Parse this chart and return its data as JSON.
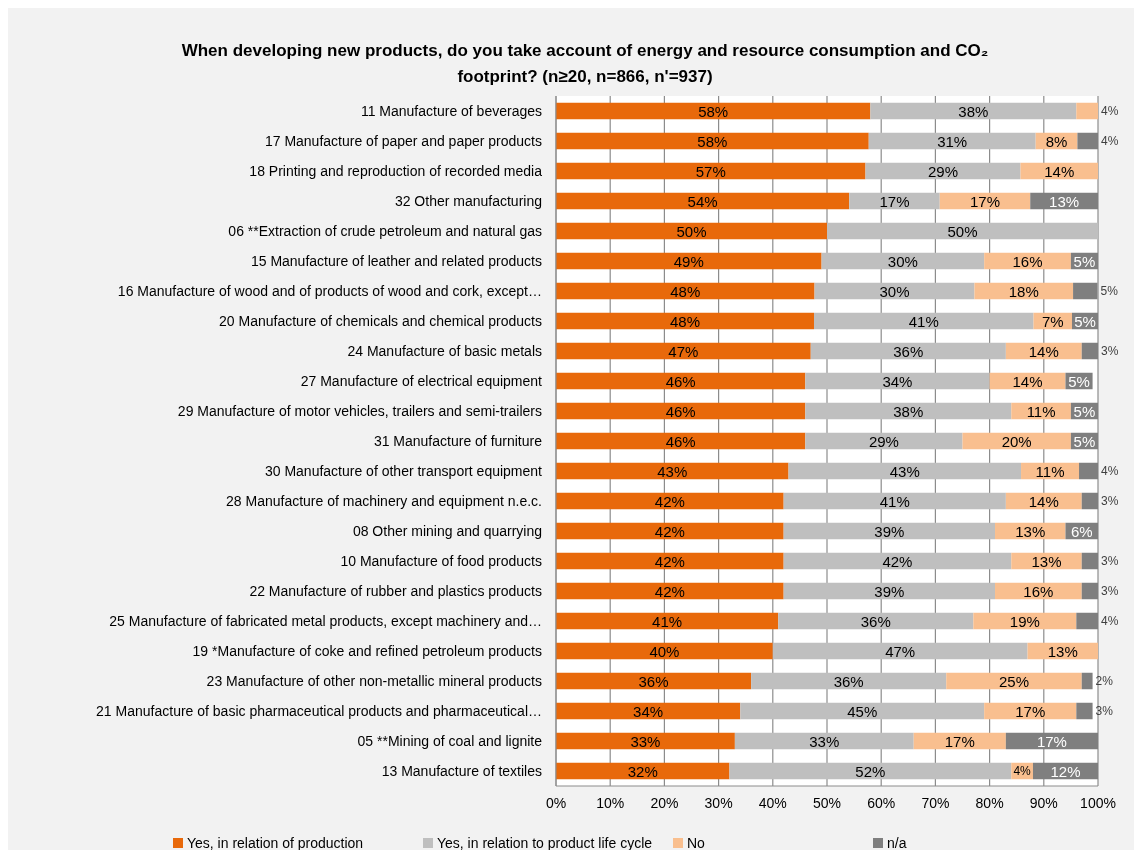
{
  "chart_data": {
    "type": "bar",
    "orientation": "horizontal",
    "stacked": true,
    "title": "When developing new products, do you take account of energy and resource consumption and CO₂ footprint? (n≥20, n=866, n'=937)",
    "categories": [
      "11 Manufacture of beverages",
      "17 Manufacture of paper and paper products",
      "18 Printing and reproduction of recorded media",
      "32 Other manufacturing",
      "06 **Extraction of crude petroleum and natural gas",
      "15 Manufacture of leather and related products",
      "16 Manufacture of wood and of products of wood and cork, except…",
      "20 Manufacture of chemicals and chemical products",
      "24 Manufacture of basic metals",
      "27 Manufacture of electrical equipment",
      "29 Manufacture of motor vehicles, trailers and semi-trailers",
      "31 Manufacture of furniture",
      "30 Manufacture of other transport equipment",
      "28 Manufacture of machinery and equipment n.e.c.",
      "08 Other mining and quarrying",
      "10 Manufacture of food products",
      "22 Manufacture of rubber and plastics products",
      "25 Manufacture of fabricated metal products, except machinery and…",
      "19 *Manufacture of coke and refined petroleum products",
      "23 Manufacture of other non-metallic mineral products",
      "21 Manufacture of basic pharmaceutical products and pharmaceutical…",
      "05 **Mining of coal and lignite",
      "13 Manufacture of textiles"
    ],
    "series": [
      {
        "name": "Yes, in relation of production",
        "color": "#e8690b",
        "values": [
          58,
          57.7,
          57.1,
          54.1,
          50,
          49,
          47.7,
          47.6,
          47,
          46,
          46,
          46,
          42.9,
          42,
          42,
          42,
          42,
          41,
          40,
          36,
          34,
          33,
          32
        ],
        "value_labels": [
          "58%",
          "58%",
          "57%",
          "54%",
          "50%",
          "49%",
          "48%",
          "48%",
          "47%",
          "46%",
          "46%",
          "46%",
          "43%",
          "42%",
          "42%",
          "42%",
          "42%",
          "41%",
          "40%",
          "36%",
          "34%",
          "33%",
          "32%"
        ]
      },
      {
        "name": "Yes, in relation to product life cycle",
        "color": "#bfbfbf",
        "values": [
          38,
          30.8,
          28.6,
          16.7,
          50,
          30,
          29.5,
          40.5,
          36,
          34,
          38,
          29,
          42.9,
          41,
          39,
          42,
          39,
          36,
          47,
          36,
          45,
          33,
          52
        ],
        "value_labels": [
          "38%",
          "31%",
          "29%",
          "17%",
          "50%",
          "30%",
          "30%",
          "41%",
          "36%",
          "34%",
          "38%",
          "29%",
          "43%",
          "41%",
          "39%",
          "42%",
          "39%",
          "36%",
          "47%",
          "36%",
          "45%",
          "33%",
          "52%"
        ]
      },
      {
        "name": "No",
        "color": "#f9bf8f",
        "values": [
          4,
          7.7,
          14.3,
          16.7,
          null,
          16,
          18.2,
          7.1,
          14,
          14,
          11,
          20,
          10.7,
          14,
          13,
          13,
          16,
          19,
          13,
          25,
          17,
          17,
          4
        ],
        "value_labels": [
          "4%",
          "8%",
          "14%",
          "17%",
          null,
          "16%",
          "18%",
          "7%",
          "14%",
          "14%",
          "11%",
          "20%",
          "11%",
          "14%",
          "13%",
          "13%",
          "16%",
          "19%",
          "13%",
          "25%",
          "17%",
          "17%",
          "4%"
        ]
      },
      {
        "name": "n/a",
        "color": "#7f7f7f",
        "values": [
          null,
          3.8,
          null,
          12.5,
          null,
          5,
          4.5,
          4.8,
          3,
          5,
          5,
          5,
          3.5,
          3,
          6,
          3,
          3,
          4,
          null,
          2,
          3,
          17,
          12
        ],
        "value_labels": [
          null,
          "4%",
          null,
          "13%",
          null,
          "5%",
          "5%",
          "5%",
          "3%",
          "5%",
          "5%",
          "5%",
          "4%",
          "3%",
          "6%",
          "3%",
          "3%",
          "4%",
          null,
          "2%",
          "3%",
          "17%",
          "12%"
        ]
      }
    ],
    "xlim": [
      0,
      100
    ],
    "xticks": [
      {
        "value": 0,
        "label": "0%"
      },
      {
        "value": 10,
        "label": "10%"
      },
      {
        "value": 20,
        "label": "20%"
      },
      {
        "value": 30,
        "label": "30%"
      },
      {
        "value": 40,
        "label": "40%"
      },
      {
        "value": 50,
        "label": "50%"
      },
      {
        "value": 60,
        "label": "60%"
      },
      {
        "value": 70,
        "label": "70%"
      },
      {
        "value": 80,
        "label": "80%"
      },
      {
        "value": 90,
        "label": "90%"
      },
      {
        "value": 100,
        "label": "100%"
      }
    ],
    "grid": "x",
    "legend": "bottom"
  }
}
